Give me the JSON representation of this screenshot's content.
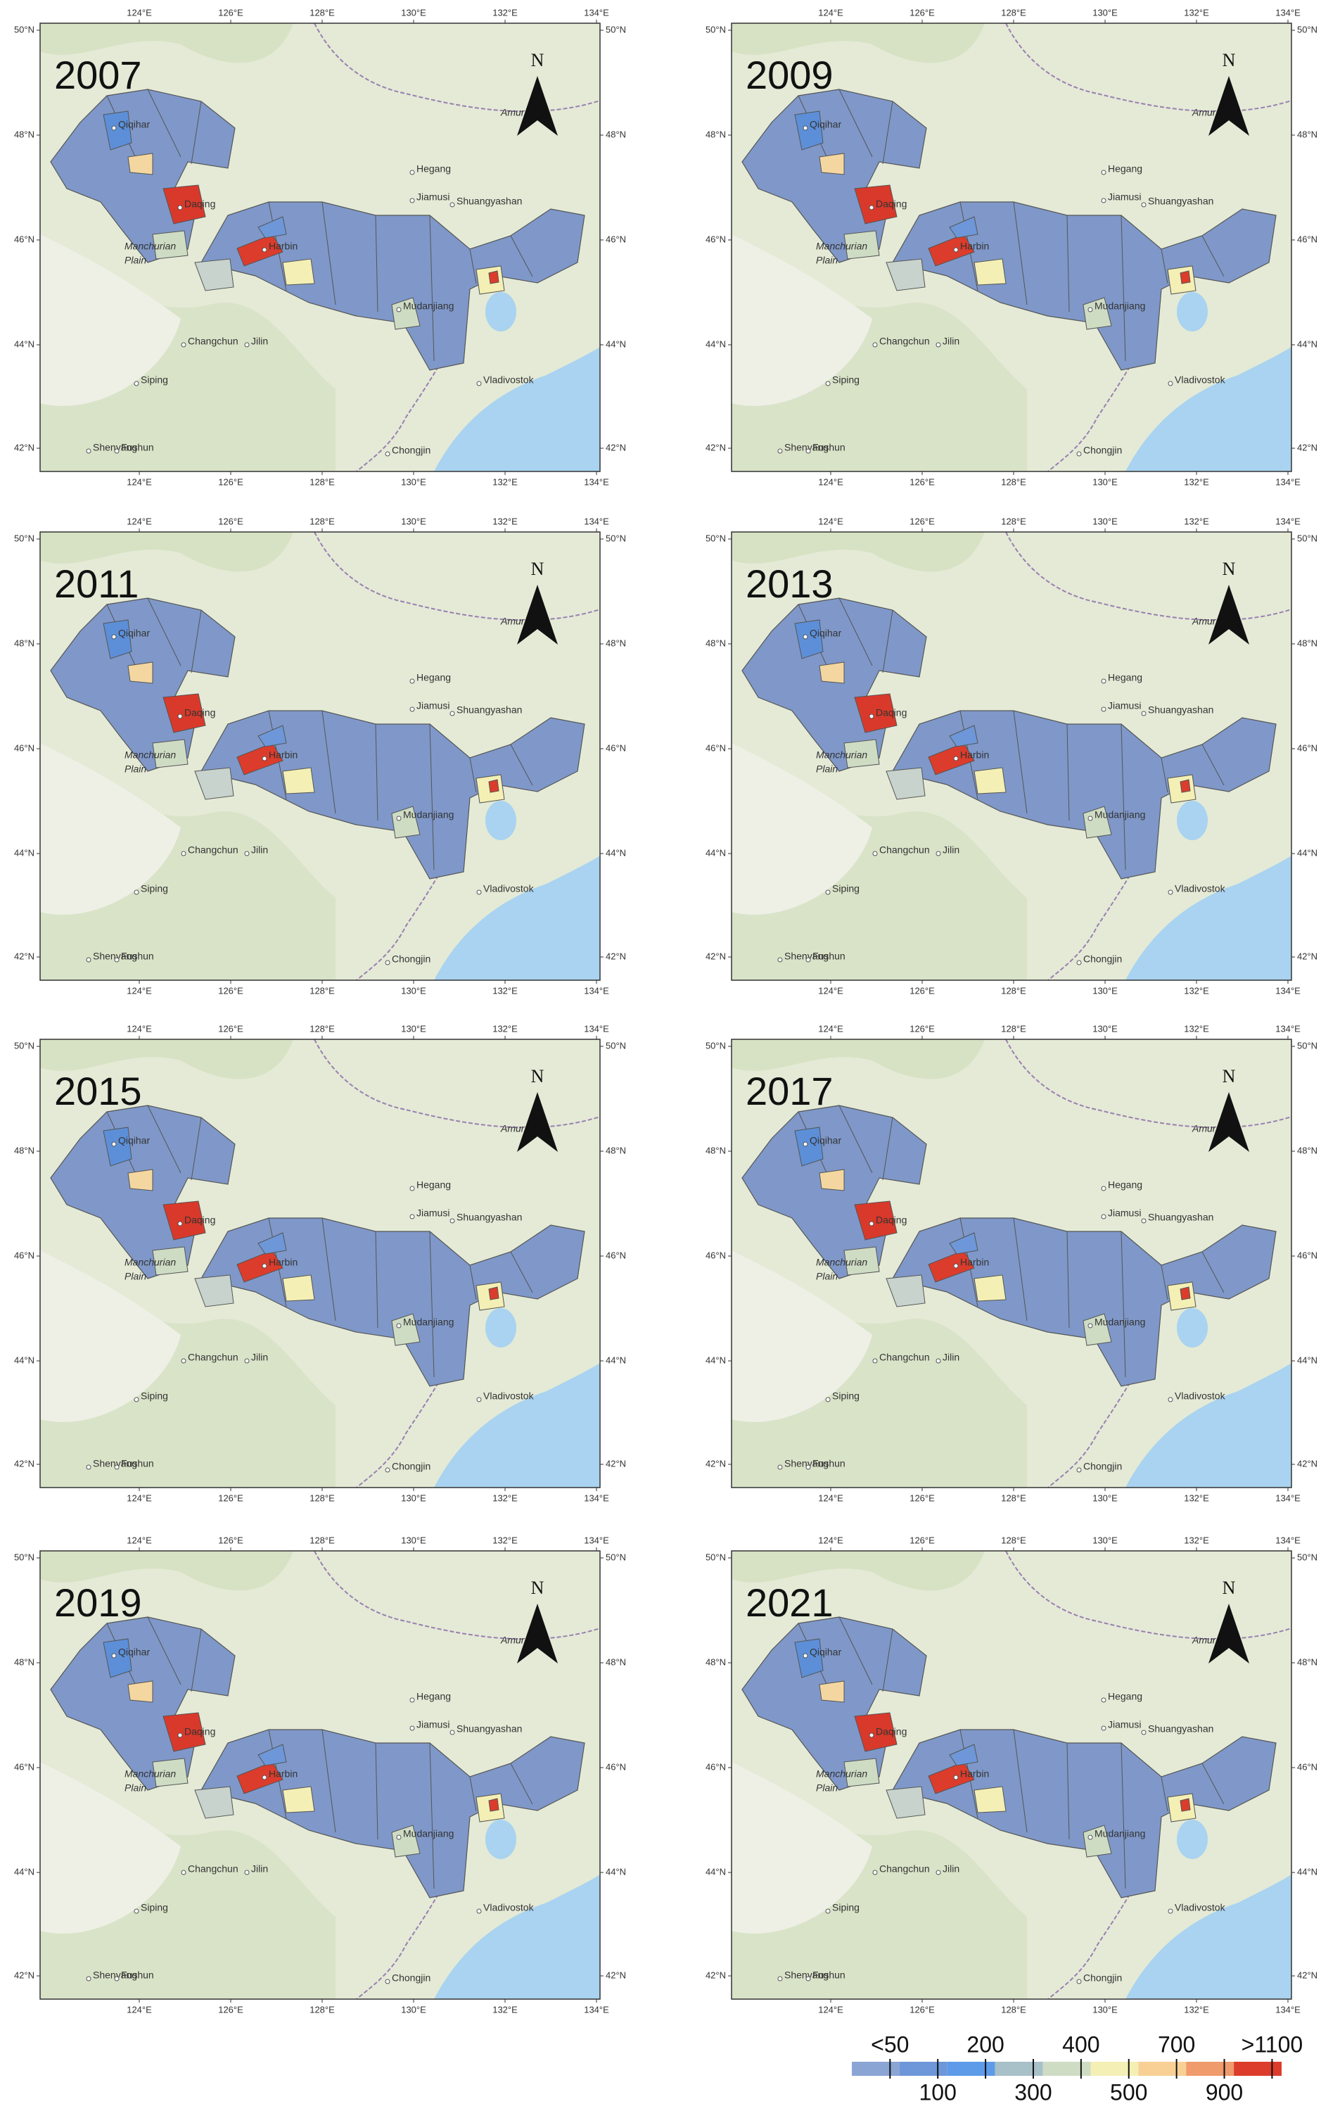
{
  "panels": [
    {
      "year": "2007"
    },
    {
      "year": "2009"
    },
    {
      "year": "2011"
    },
    {
      "year": "2013"
    },
    {
      "year": "2015"
    },
    {
      "year": "2017"
    },
    {
      "year": "2019"
    },
    {
      "year": "2021"
    }
  ],
  "map": {
    "lon_ticks": [
      "124°E",
      "126°E",
      "128°E",
      "130°E",
      "132°E",
      "134°E"
    ],
    "lat_ticks": [
      "42°N",
      "44°N",
      "46°N",
      "48°N",
      "50°N"
    ],
    "places": [
      "Qiqihar",
      "Daqing",
      "Harbin",
      "Hegang",
      "Jiamusi",
      "Shuangyashan",
      "Mudanjiang",
      "Changchun",
      "Jilin",
      "Siping",
      "Shenyang",
      "Fushun",
      "Chongjin",
      "Vladivostok",
      "Manchurian",
      "Plain",
      "Amur"
    ],
    "north": "N"
  },
  "legend": {
    "labels": [
      "<50",
      "100",
      "200",
      "300",
      "400",
      "500",
      "700",
      "900",
      ">1100"
    ],
    "colors": [
      "#8aa4d4",
      "#6d97d8",
      "#5d9be8",
      "#a8c0c8",
      "#cfdcc4",
      "#f4efb4",
      "#f8d095",
      "#ef9b6c",
      "#dc3c2c"
    ]
  }
}
